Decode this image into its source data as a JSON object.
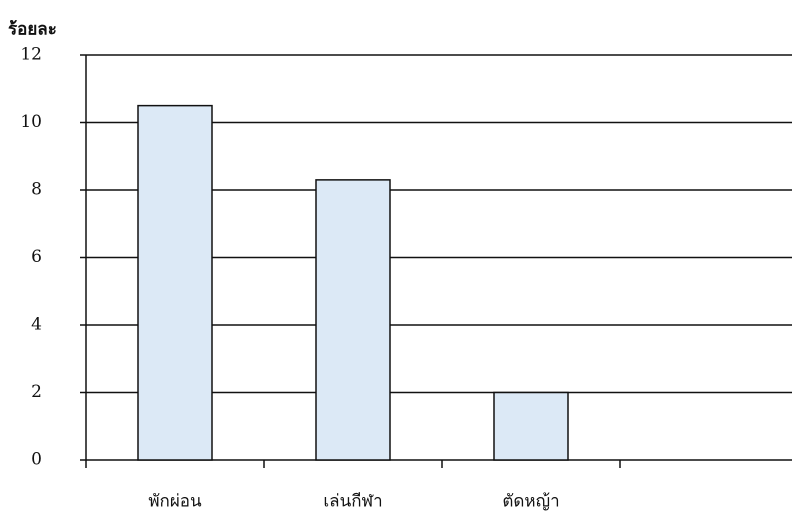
{
  "chart_data": {
    "type": "bar",
    "y_label": "ร้อยละ",
    "categories": [
      "พักผ่อน",
      "เล่นกีฬา",
      "ตัดหญ้า"
    ],
    "values": [
      10.5,
      8.3,
      2.0
    ],
    "color": "#dce9f6",
    "ylim": [
      0,
      12
    ],
    "yticks": [
      0,
      2,
      4,
      6,
      8,
      10,
      12
    ],
    "grid": true
  }
}
